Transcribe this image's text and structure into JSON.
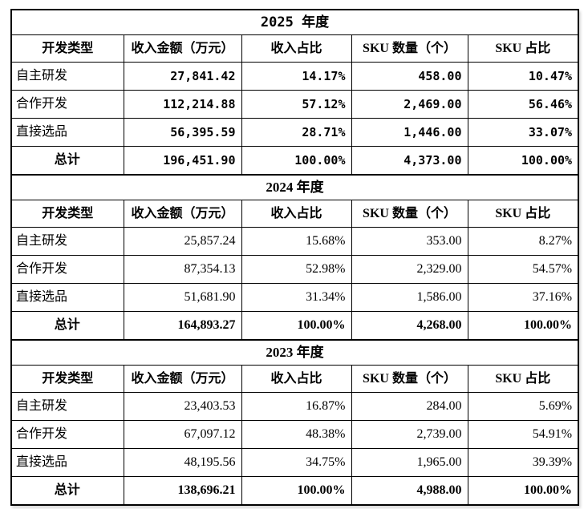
{
  "table": {
    "columns": [
      "开发类型",
      "收入金额（万元）",
      "收入占比",
      "SKU 数量（个）",
      "SKU 占比"
    ],
    "sections": [
      {
        "year_label": "2025 年度",
        "rows": [
          {
            "type": "自主研发",
            "revenue": "27,841.42",
            "revenue_pct": "14.17%",
            "sku_count": "458.00",
            "sku_pct": "10.47%"
          },
          {
            "type": "合作开发",
            "revenue": "112,214.88",
            "revenue_pct": "57.12%",
            "sku_count": "2,469.00",
            "sku_pct": "56.46%"
          },
          {
            "type": "直接选品",
            "revenue": "56,395.59",
            "revenue_pct": "28.71%",
            "sku_count": "1,446.00",
            "sku_pct": "33.07%"
          },
          {
            "type": "总计",
            "revenue": "196,451.90",
            "revenue_pct": "100.00%",
            "sku_count": "4,373.00",
            "sku_pct": "100.00%"
          }
        ]
      },
      {
        "year_label": "2024 年度",
        "rows": [
          {
            "type": "自主研发",
            "revenue": "25,857.24",
            "revenue_pct": "15.68%",
            "sku_count": "353.00",
            "sku_pct": "8.27%"
          },
          {
            "type": "合作开发",
            "revenue": "87,354.13",
            "revenue_pct": "52.98%",
            "sku_count": "2,329.00",
            "sku_pct": "54.57%"
          },
          {
            "type": "直接选品",
            "revenue": "51,681.90",
            "revenue_pct": "31.34%",
            "sku_count": "1,586.00",
            "sku_pct": "37.16%"
          },
          {
            "type": "总计",
            "revenue": "164,893.27",
            "revenue_pct": "100.00%",
            "sku_count": "4,268.00",
            "sku_pct": "100.00%"
          }
        ]
      },
      {
        "year_label": "2023 年度",
        "rows": [
          {
            "type": "自主研发",
            "revenue": "23,403.53",
            "revenue_pct": "16.87%",
            "sku_count": "284.00",
            "sku_pct": "5.69%"
          },
          {
            "type": "合作开发",
            "revenue": "67,097.12",
            "revenue_pct": "48.38%",
            "sku_count": "2,739.00",
            "sku_pct": "54.91%"
          },
          {
            "type": "直接选品",
            "revenue": "48,195.56",
            "revenue_pct": "34.75%",
            "sku_count": "1,965.00",
            "sku_pct": "39.39%"
          },
          {
            "type": "总计",
            "revenue": "138,696.21",
            "revenue_pct": "100.00%",
            "sku_count": "4,988.00",
            "sku_pct": "100.00%"
          }
        ]
      }
    ],
    "text_color": "#000000",
    "border_color": "#000000",
    "background_color": "#ffffff"
  }
}
